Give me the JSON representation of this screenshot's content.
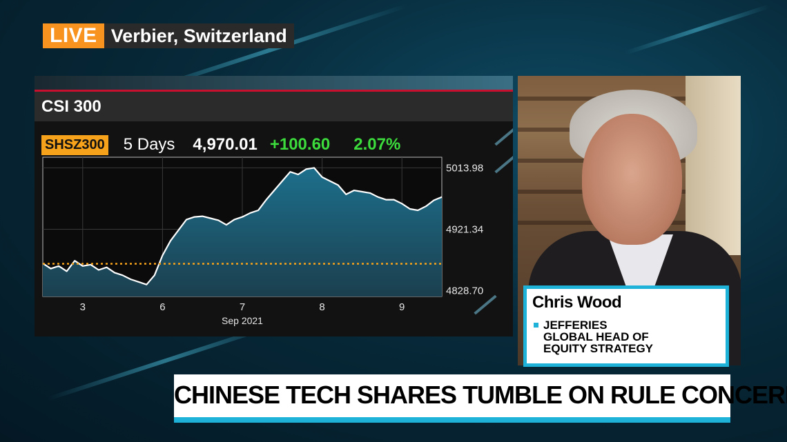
{
  "live": {
    "label": "LIVE",
    "location": "Verbier, Switzerland"
  },
  "chart_panel": {
    "title": "CSI 300",
    "ticker": "SHSZ300",
    "period": "5 Days",
    "price": "4,970.01",
    "change": "+100.60",
    "percent": "2.07%"
  },
  "guest": {
    "name": "Chris Wood",
    "role_lines": [
      "JEFFERIES",
      "GLOBAL HEAD OF",
      "EQUITY STRATEGY"
    ]
  },
  "headline": "CHINESE TECH SHARES TUMBLE ON RULE CONCERN",
  "colors": {
    "live": "#f7931e",
    "accent": "#1fb2d9",
    "up": "#3ddc3d",
    "ticker": "#f7a21b"
  },
  "chart_data": {
    "type": "area",
    "x_ticks": [
      "3",
      "6",
      "7",
      "8",
      "9"
    ],
    "x_caption": "Sep 2021",
    "y_ticks": [
      "5013.98",
      "4921.34",
      "4828.70"
    ],
    "ylim": [
      4820,
      5030
    ],
    "reference_value": 4869.41,
    "x_range": [
      0,
      20
    ],
    "grid": true,
    "series": [
      {
        "x": [
          0,
          0.4,
          0.8,
          1.2,
          1.6,
          2.0,
          2.4,
          2.8,
          3.2,
          3.6,
          4.0,
          4.4,
          4.8,
          5.2,
          5.6,
          6.0,
          6.4,
          6.8,
          7.2,
          7.6,
          8.0,
          8.4,
          8.8,
          9.2,
          9.6,
          10.0,
          10.4,
          10.8,
          11.2,
          11.6,
          12.0,
          12.4,
          12.8,
          13.2,
          13.6,
          14.0,
          14.4,
          14.8,
          15.2,
          15.6,
          16.0,
          16.4,
          16.8,
          17.2,
          17.6,
          18.0,
          18.4,
          18.8,
          19.2,
          19.6,
          20.0
        ],
        "values": [
          4870,
          4862,
          4866,
          4858,
          4874,
          4866,
          4868,
          4860,
          4864,
          4856,
          4852,
          4846,
          4842,
          4838,
          4852,
          4882,
          4904,
          4920,
          4936,
          4940,
          4941,
          4938,
          4935,
          4928,
          4936,
          4940,
          4946,
          4950,
          4966,
          4980,
          4994,
          5008,
          5004,
          5012,
          5014,
          5000,
          4994,
          4988,
          4974,
          4980,
          4978,
          4976,
          4970,
          4966,
          4966,
          4960,
          4952,
          4950,
          4956,
          4965,
          4970
        ]
      }
    ]
  }
}
